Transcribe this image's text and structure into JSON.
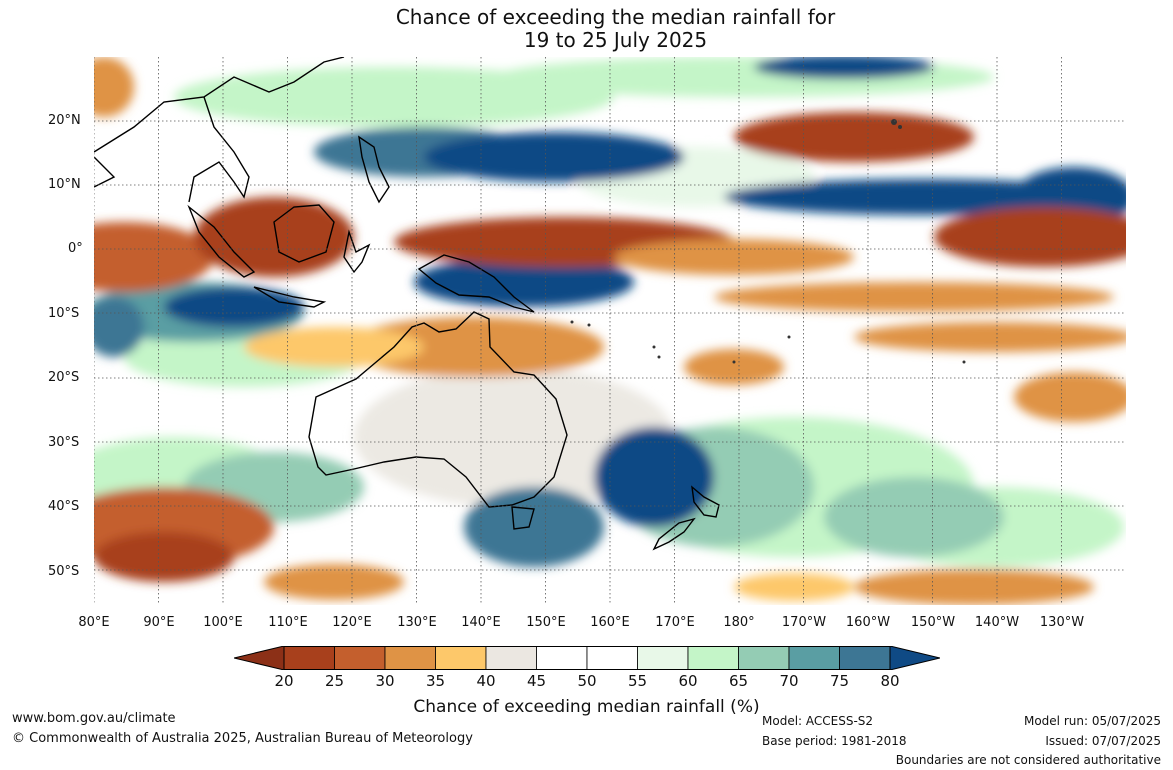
{
  "title": {
    "line1": "Chance of exceeding the median rainfall for",
    "line2": "19 to 25 July 2025"
  },
  "map": {
    "lat_labels": [
      "20°N",
      "10°N",
      "0°",
      "10°S",
      "20°S",
      "30°S",
      "40°S",
      "50°S"
    ],
    "lon_labels": [
      "80°E",
      "90°E",
      "100°E",
      "110°E",
      "120°E",
      "130°E",
      "140°E",
      "150°E",
      "160°E",
      "170°E",
      "180°",
      "170°W",
      "160°W",
      "150°W",
      "140°W",
      "130°W"
    ]
  },
  "colorbar": {
    "ticks": [
      "20",
      "25",
      "30",
      "35",
      "40",
      "45",
      "50",
      "55",
      "60",
      "65",
      "70",
      "75",
      "80"
    ],
    "colors": [
      "#8c3017",
      "#a8401c",
      "#c45f2d",
      "#df9345",
      "#fdc86a",
      "#ebe7e1",
      "#ffffff",
      "#ffffff",
      "#e8f8e8",
      "#c4f5c8",
      "#94ccb4",
      "#5a9ea3",
      "#3d7694",
      "#0f4a85"
    ],
    "label": "Chance of exceeding median rainfall (%)"
  },
  "footer": {
    "website": "www.bom.gov.au/climate",
    "copyright": "© Commonwealth of Australia 2025, Australian Bureau of Meteorology",
    "model": "Model: ACCESS-S2",
    "base_period": "Base period: 1981-2018",
    "model_run": "Model run: 05/07/2025",
    "issued": "Issued: 07/07/2025",
    "disclaimer": "Boundaries are not considered authoritative"
  }
}
